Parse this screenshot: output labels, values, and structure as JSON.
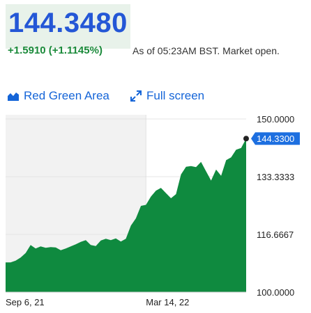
{
  "quote": {
    "price": "144.3480",
    "change": "+1.5910 (+1.1145%)",
    "as_of": "As of 05:23AM BST. Market open."
  },
  "toolbar": {
    "chart_type_label": "Red Green Area",
    "chart_type_icon": "area-chart-icon",
    "fullscreen_label": "Full screen",
    "fullscreen_icon": "expand-arrows-icon"
  },
  "colors": {
    "price": "#2457d6",
    "positive": "#1a8a3a",
    "link": "#1565d8",
    "area_fill": "#0f8a3f",
    "price_tag": "#1d6fe0",
    "shaded_range": "#f2f2f2"
  },
  "chart_data": {
    "type": "area",
    "y_ticks": [
      "150.0000",
      "133.3333",
      "116.6667",
      "100.0000"
    ],
    "ylim": [
      100,
      150
    ],
    "x_ticks": [
      "Sep 6, 21",
      "Mar 14, 22"
    ],
    "x_tick_index": [
      0,
      28
    ],
    "last_price_label": "144.3300",
    "last_price": 144.33,
    "grid": true,
    "values": [
      108.6,
      108.6,
      109.1,
      110.0,
      111.3,
      113.6,
      112.6,
      113.2,
      112.8,
      113.0,
      112.9,
      112.1,
      112.6,
      113.2,
      113.8,
      114.5,
      115.0,
      113.6,
      113.3,
      114.9,
      115.4,
      115.0,
      115.5,
      114.6,
      115.4,
      119.2,
      121.3,
      124.9,
      125.2,
      127.6,
      129.3,
      130.1,
      128.6,
      127.1,
      128.3,
      134.0,
      136.2,
      136.4,
      136.1,
      137.6,
      134.9,
      132.2,
      135.4,
      133.6,
      138.1,
      138.9,
      141.1,
      141.6,
      144.33
    ],
    "shaded_until_index": 28
  }
}
